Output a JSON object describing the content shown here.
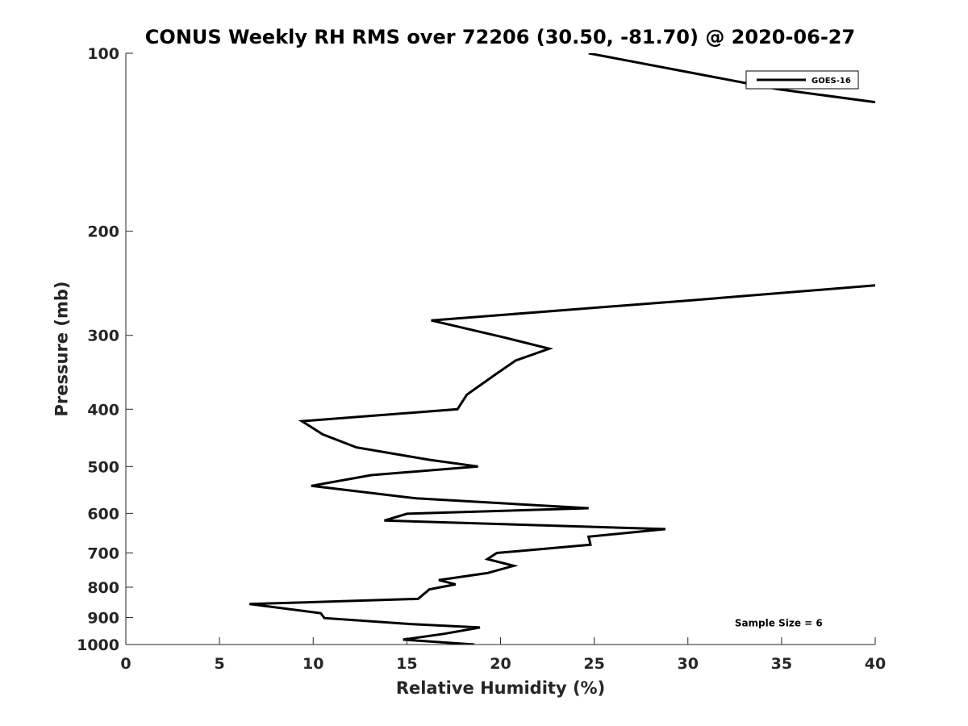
{
  "chart_data": {
    "type": "line",
    "title": "CONUS Weekly RH RMS over 72206 (30.50, -81.70) @ 2020-06-27",
    "xlabel": "Relative Humidity (%)",
    "ylabel": "Pressure (mb)",
    "xlim": [
      0,
      40
    ],
    "ylim": [
      100,
      1000
    ],
    "y_scale": "log",
    "y_reversed": true,
    "x_ticks": [
      0,
      5,
      10,
      15,
      20,
      25,
      30,
      35,
      40
    ],
    "y_ticks": [
      100,
      200,
      300,
      400,
      500,
      600,
      700,
      800,
      900,
      1000
    ],
    "grid": false,
    "legend": "top-right",
    "series": [
      {
        "name": "GOES-16",
        "color": "#000000",
        "segments": [
          [
            {
              "x": 24.7,
              "p": 100
            },
            {
              "x": 34.8,
              "p": 115
            },
            {
              "x": 40.0,
              "p": 121
            }
          ],
          [
            {
              "x": 40.0,
              "p": 247
            },
            {
              "x": 30.0,
              "p": 262
            },
            {
              "x": 16.3,
              "p": 283
            },
            {
              "x": 20.1,
              "p": 302
            },
            {
              "x": 22.6,
              "p": 316
            },
            {
              "x": 20.8,
              "p": 331
            },
            {
              "x": 19.8,
              "p": 348
            },
            {
              "x": 18.2,
              "p": 378
            },
            {
              "x": 17.7,
              "p": 400
            },
            {
              "x": 9.4,
              "p": 419
            },
            {
              "x": 10.5,
              "p": 441
            },
            {
              "x": 12.3,
              "p": 464
            },
            {
              "x": 16.2,
              "p": 487
            },
            {
              "x": 18.8,
              "p": 500
            },
            {
              "x": 13.1,
              "p": 517
            },
            {
              "x": 9.9,
              "p": 539
            },
            {
              "x": 15.5,
              "p": 566
            },
            {
              "x": 24.7,
              "p": 588
            },
            {
              "x": 15.0,
              "p": 601
            },
            {
              "x": 13.8,
              "p": 617
            },
            {
              "x": 28.8,
              "p": 638
            },
            {
              "x": 24.7,
              "p": 657
            },
            {
              "x": 24.8,
              "p": 678
            },
            {
              "x": 19.8,
              "p": 700
            },
            {
              "x": 19.3,
              "p": 717
            },
            {
              "x": 20.7,
              "p": 736
            },
            {
              "x": 19.3,
              "p": 757
            },
            {
              "x": 16.7,
              "p": 778
            },
            {
              "x": 17.6,
              "p": 791
            },
            {
              "x": 16.2,
              "p": 807
            },
            {
              "x": 15.6,
              "p": 837
            },
            {
              "x": 6.6,
              "p": 854
            },
            {
              "x": 10.4,
              "p": 885
            },
            {
              "x": 10.6,
              "p": 902
            },
            {
              "x": 15.3,
              "p": 924
            },
            {
              "x": 18.9,
              "p": 936
            },
            {
              "x": 17.0,
              "p": 959
            },
            {
              "x": 14.8,
              "p": 981
            },
            {
              "x": 18.6,
              "p": 1000
            }
          ]
        ]
      }
    ],
    "annotations": [
      {
        "text": "Sample Size = 6",
        "x": 32.5,
        "p": 920
      }
    ]
  }
}
